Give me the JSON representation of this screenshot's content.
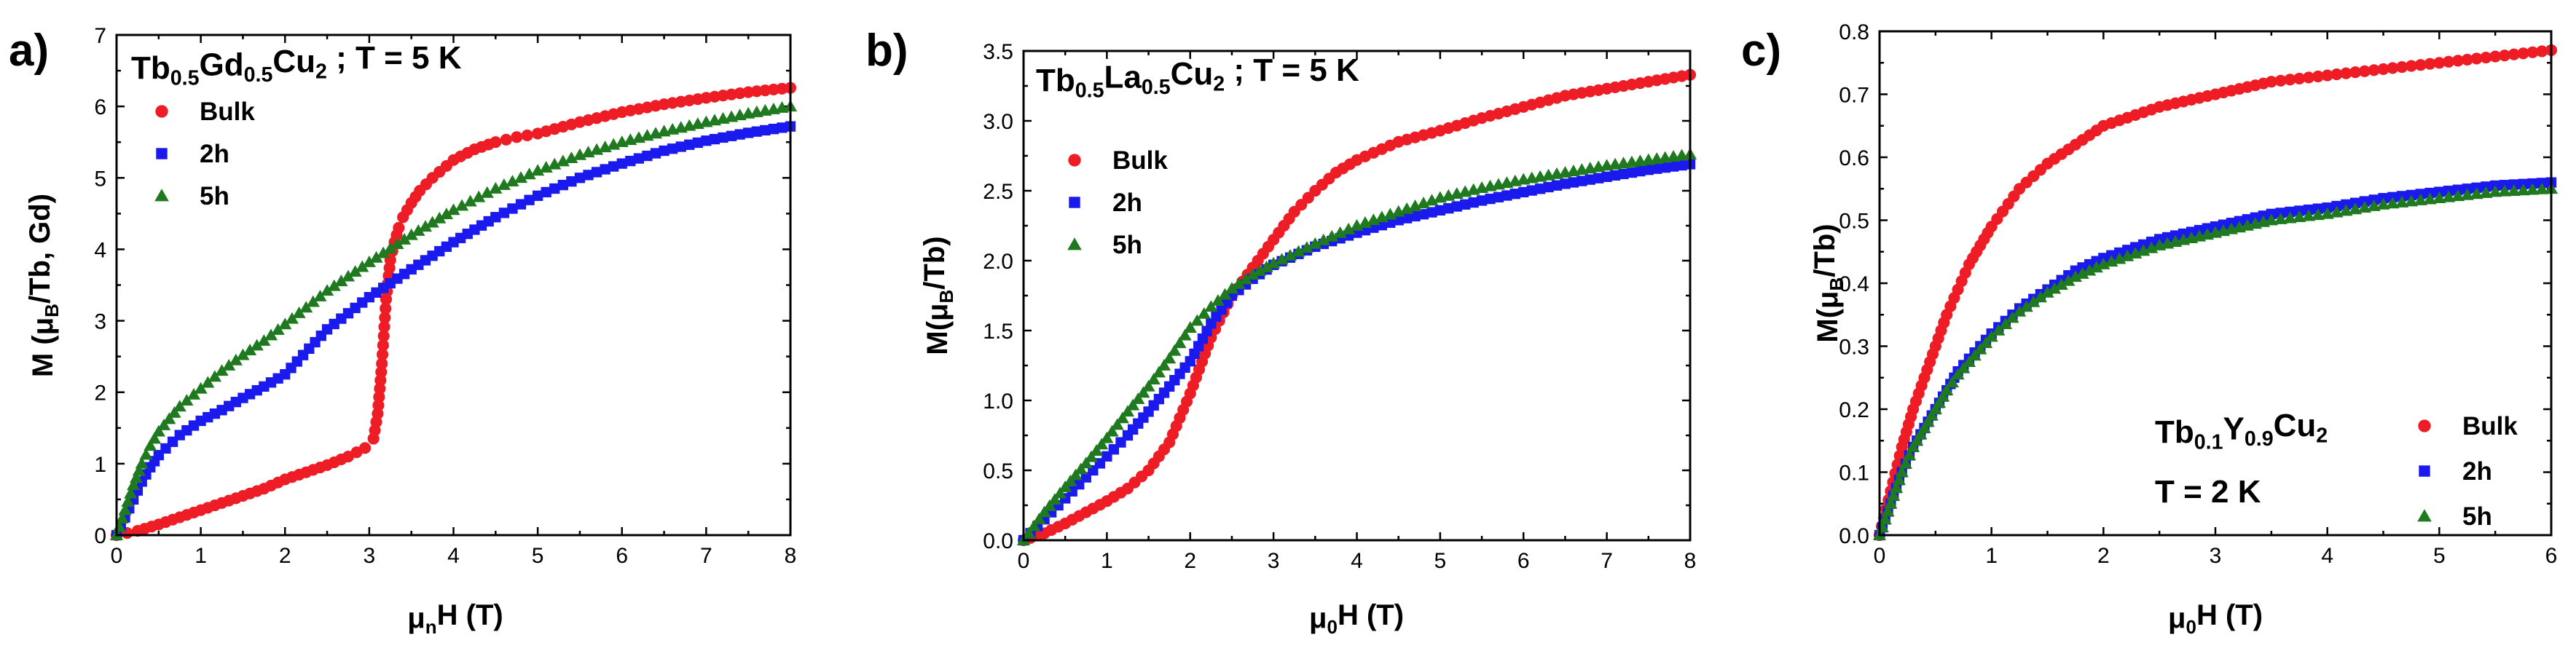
{
  "colors": {
    "bulk": "#ee1c25",
    "h2": "#1a1aee",
    "h5": "#1f7a1f"
  },
  "chart_data": [
    {
      "panel": "a)",
      "type": "scatter",
      "compound": {
        "parts": [
          [
            "Tb",
            "b"
          ],
          [
            "0.5",
            "s"
          ],
          [
            "Gd",
            "b"
          ],
          [
            "0.5",
            "s"
          ],
          [
            "Cu",
            "b"
          ],
          [
            "2",
            "s"
          ],
          [
            " ; T = 5 K",
            "b"
          ]
        ]
      },
      "xlabel": {
        "parts": [
          [
            "μ",
            "b"
          ],
          [
            "n",
            "s"
          ],
          [
            "H (T)",
            "b"
          ]
        ]
      },
      "ylabel": {
        "parts": [
          [
            "M (μ",
            "b"
          ],
          [
            "B",
            "s"
          ],
          [
            "/Tb, Gd)",
            "b"
          ]
        ]
      },
      "xlim": [
        0,
        8
      ],
      "ylim": [
        0,
        7
      ],
      "xticks": [
        0,
        1,
        2,
        3,
        4,
        5,
        6,
        7,
        8
      ],
      "yticks": [
        0,
        1,
        2,
        3,
        4,
        5,
        6,
        7
      ],
      "legend": [
        "Bulk",
        "2h",
        "5h"
      ],
      "series": [
        {
          "name": "Bulk",
          "color_key": "bulk",
          "marker": "circle",
          "x": [
            0,
            0.25,
            0.5,
            0.75,
            1.0,
            1.25,
            1.5,
            1.75,
            2.0,
            2.25,
            2.5,
            2.75,
            2.95,
            3.05,
            3.1,
            3.15,
            3.2,
            3.25,
            3.3,
            3.35,
            3.4,
            3.5,
            3.6,
            3.75,
            4.0,
            4.25,
            4.5,
            4.75,
            5.0,
            5.5,
            6.0,
            6.5,
            7.0,
            7.5,
            8.0
          ],
          "y": [
            0,
            0.06,
            0.15,
            0.25,
            0.35,
            0.45,
            0.55,
            0.65,
            0.78,
            0.88,
            0.98,
            1.1,
            1.22,
            1.35,
            1.7,
            2.4,
            3.3,
            3.85,
            4.1,
            4.3,
            4.45,
            4.65,
            4.82,
            5.0,
            5.25,
            5.4,
            5.5,
            5.57,
            5.62,
            5.78,
            5.92,
            6.03,
            6.12,
            6.2,
            6.26
          ]
        },
        {
          "name": "2h",
          "color_key": "h2",
          "marker": "square",
          "x": [
            0,
            0.1,
            0.2,
            0.3,
            0.4,
            0.5,
            0.75,
            1.0,
            1.25,
            1.5,
            1.75,
            2.0,
            2.5,
            3.0,
            3.5,
            4.0,
            4.5,
            5.0,
            5.5,
            6.0,
            6.5,
            7.0,
            7.5,
            8.0
          ],
          "y": [
            0,
            0.25,
            0.5,
            0.75,
            0.95,
            1.12,
            1.4,
            1.6,
            1.75,
            1.92,
            2.08,
            2.25,
            2.88,
            3.33,
            3.72,
            4.1,
            4.45,
            4.75,
            5.0,
            5.2,
            5.38,
            5.52,
            5.63,
            5.72
          ]
        },
        {
          "name": "5h",
          "color_key": "h5",
          "marker": "triangle",
          "x": [
            0,
            0.1,
            0.2,
            0.3,
            0.4,
            0.5,
            0.75,
            1.0,
            1.25,
            1.5,
            1.75,
            2.0,
            2.5,
            3.0,
            3.5,
            4.0,
            4.5,
            5.0,
            5.5,
            6.0,
            6.5,
            7.0,
            7.5,
            8.0
          ],
          "y": [
            0,
            0.35,
            0.7,
            1.0,
            1.25,
            1.45,
            1.8,
            2.05,
            2.3,
            2.52,
            2.72,
            2.95,
            3.42,
            3.82,
            4.2,
            4.55,
            4.85,
            5.1,
            5.32,
            5.5,
            5.65,
            5.78,
            5.9,
            6.0
          ]
        }
      ]
    },
    {
      "panel": "b)",
      "type": "scatter",
      "compound": {
        "parts": [
          [
            "Tb",
            "b"
          ],
          [
            "0.5",
            "s"
          ],
          [
            "La",
            "b"
          ],
          [
            "0.5",
            "s"
          ],
          [
            "Cu",
            "b"
          ],
          [
            "2",
            "s"
          ],
          [
            " ; T = 5 K",
            "b"
          ]
        ]
      },
      "xlabel": {
        "parts": [
          [
            "μ",
            "b"
          ],
          [
            "0",
            "s"
          ],
          [
            "H (T)",
            "b"
          ]
        ]
      },
      "ylabel": {
        "parts": [
          [
            "M(μ",
            "b"
          ],
          [
            "B",
            "s"
          ],
          [
            "/Tb)",
            "b"
          ]
        ]
      },
      "xlim": [
        0,
        8
      ],
      "ylim": [
        0,
        3.5
      ],
      "xticks": [
        0,
        1,
        2,
        3,
        4,
        5,
        6,
        7,
        8
      ],
      "yticks": [
        0.0,
        0.5,
        1.0,
        1.5,
        2.0,
        2.5,
        3.0,
        3.5
      ],
      "legend": [
        "Bulk",
        "2h",
        "5h"
      ],
      "series": [
        {
          "name": "Bulk",
          "color_key": "bulk",
          "marker": "circle",
          "x": [
            0,
            0.25,
            0.5,
            0.75,
            1.0,
            1.25,
            1.5,
            1.75,
            2.0,
            2.25,
            2.5,
            2.75,
            3.0,
            3.25,
            3.5,
            3.75,
            4.0,
            4.5,
            5.0,
            5.5,
            6.0,
            6.5,
            7.0,
            7.5,
            8.0
          ],
          "y": [
            0,
            0.05,
            0.12,
            0.2,
            0.28,
            0.37,
            0.5,
            0.7,
            1.05,
            1.45,
            1.75,
            1.95,
            2.15,
            2.35,
            2.5,
            2.63,
            2.72,
            2.85,
            2.93,
            3.02,
            3.1,
            3.18,
            3.23,
            3.28,
            3.33
          ]
        },
        {
          "name": "2h",
          "color_key": "h2",
          "marker": "square",
          "x": [
            0,
            0.25,
            0.5,
            0.75,
            1.0,
            1.25,
            1.5,
            1.75,
            2.0,
            2.25,
            2.5,
            2.75,
            3.0,
            3.5,
            4.0,
            4.5,
            5.0,
            5.5,
            6.0,
            6.5,
            7.0,
            7.5,
            8.0
          ],
          "y": [
            0,
            0.15,
            0.3,
            0.45,
            0.6,
            0.75,
            0.92,
            1.1,
            1.28,
            1.55,
            1.75,
            1.87,
            1.97,
            2.1,
            2.2,
            2.29,
            2.36,
            2.43,
            2.49,
            2.55,
            2.6,
            2.65,
            2.69
          ]
        },
        {
          "name": "5h",
          "color_key": "h5",
          "marker": "triangle",
          "x": [
            0,
            0.25,
            0.5,
            0.75,
            1.0,
            1.25,
            1.5,
            1.75,
            2.0,
            2.25,
            2.5,
            2.75,
            3.0,
            3.5,
            4.0,
            4.5,
            5.0,
            5.5,
            6.0,
            6.5,
            7.0,
            7.5,
            8.0
          ],
          "y": [
            0,
            0.2,
            0.38,
            0.55,
            0.73,
            0.92,
            1.1,
            1.3,
            1.52,
            1.67,
            1.8,
            1.9,
            1.98,
            2.12,
            2.25,
            2.35,
            2.45,
            2.52,
            2.58,
            2.63,
            2.68,
            2.72,
            2.76
          ]
        }
      ]
    },
    {
      "panel": "c)",
      "type": "scatter",
      "compound": {
        "parts": [
          [
            "Tb",
            "b"
          ],
          [
            "0.1",
            "s"
          ],
          [
            "Y",
            "b"
          ],
          [
            "0.9",
            "s"
          ],
          [
            "Cu",
            "b"
          ],
          [
            "2",
            "s"
          ]
        ]
      },
      "temperature": "T = 2 K",
      "xlabel": {
        "parts": [
          [
            "μ",
            "b"
          ],
          [
            "0",
            "s"
          ],
          [
            "H (T)",
            "b"
          ]
        ]
      },
      "ylabel": {
        "parts": [
          [
            "M(μ",
            "b"
          ],
          [
            "B",
            "s"
          ],
          [
            "/Tb)",
            "b"
          ]
        ]
      },
      "xlim": [
        0,
        6
      ],
      "ylim": [
        0,
        0.8
      ],
      "xticks": [
        0,
        1,
        2,
        3,
        4,
        5,
        6
      ],
      "yticks": [
        0.0,
        0.1,
        0.2,
        0.3,
        0.4,
        0.5,
        0.6,
        0.7,
        0.8
      ],
      "legend": [
        "Bulk",
        "2h",
        "5h"
      ],
      "series": [
        {
          "name": "Bulk",
          "color_key": "bulk",
          "marker": "circle",
          "x": [
            0,
            0.1,
            0.2,
            0.3,
            0.4,
            0.5,
            0.6,
            0.7,
            0.8,
            0.9,
            1.0,
            1.25,
            1.5,
            1.75,
            2.0,
            2.5,
            3.0,
            3.5,
            4.0,
            4.5,
            5.0,
            5.5,
            6.0
          ],
          "y": [
            0,
            0.07,
            0.14,
            0.2,
            0.25,
            0.3,
            0.35,
            0.39,
            0.43,
            0.46,
            0.49,
            0.55,
            0.59,
            0.62,
            0.65,
            0.68,
            0.7,
            0.72,
            0.73,
            0.74,
            0.75,
            0.76,
            0.77
          ]
        },
        {
          "name": "2h",
          "color_key": "h2",
          "marker": "square",
          "x": [
            0,
            0.1,
            0.2,
            0.3,
            0.4,
            0.5,
            0.6,
            0.7,
            0.8,
            0.9,
            1.0,
            1.25,
            1.5,
            1.75,
            2.0,
            2.5,
            3.0,
            3.5,
            4.0,
            4.5,
            5.0,
            5.5,
            6.0
          ],
          "y": [
            0,
            0.05,
            0.1,
            0.14,
            0.17,
            0.2,
            0.23,
            0.26,
            0.28,
            0.3,
            0.32,
            0.36,
            0.39,
            0.42,
            0.44,
            0.47,
            0.49,
            0.51,
            0.52,
            0.535,
            0.545,
            0.555,
            0.56
          ]
        },
        {
          "name": "5h",
          "color_key": "h5",
          "marker": "triangle",
          "x": [
            0,
            0.1,
            0.2,
            0.3,
            0.4,
            0.5,
            0.6,
            0.7,
            0.8,
            0.9,
            1.0,
            1.25,
            1.5,
            1.75,
            2.0,
            2.5,
            3.0,
            3.5,
            4.0,
            4.5,
            5.0,
            5.5,
            6.0
          ],
          "y": [
            0,
            0.05,
            0.1,
            0.14,
            0.17,
            0.2,
            0.23,
            0.255,
            0.275,
            0.295,
            0.315,
            0.355,
            0.385,
            0.41,
            0.43,
            0.46,
            0.48,
            0.5,
            0.51,
            0.525,
            0.535,
            0.545,
            0.55
          ]
        }
      ]
    }
  ]
}
